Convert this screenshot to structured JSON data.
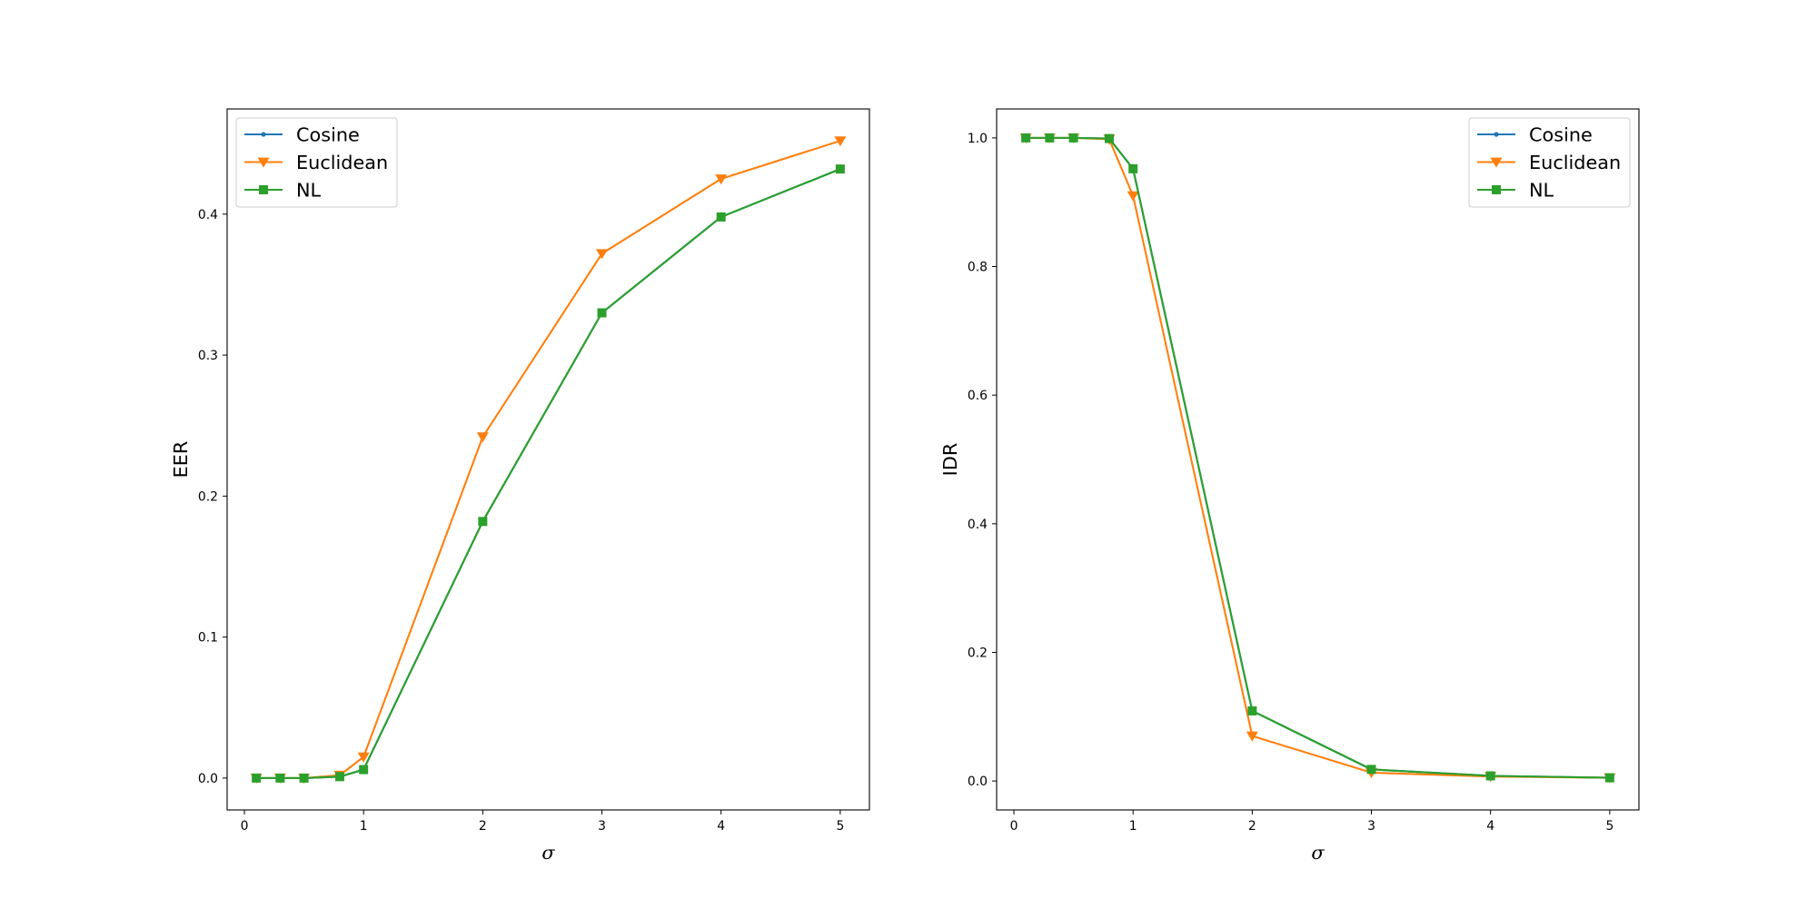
{
  "chart_data": [
    {
      "type": "line",
      "xlabel": "σ",
      "ylabel": "EER",
      "xlim": [
        -0.145,
        5.245
      ],
      "ylim": [
        -0.0226,
        0.4746
      ],
      "xticks": [
        0,
        1,
        2,
        3,
        4,
        5
      ],
      "yticks": [
        0.0,
        0.1,
        0.2,
        0.3,
        0.4
      ],
      "ytick_labels": [
        "0.0",
        "0.1",
        "0.2",
        "0.3",
        "0.4"
      ],
      "legend_position": "upper left",
      "grid": false,
      "x": [
        0.1,
        0.3,
        0.5,
        0.8,
        1,
        2,
        3,
        4,
        5
      ],
      "series": [
        {
          "name": "Cosine",
          "color": "#1f77b4",
          "marker": "point",
          "values": [
            0.0,
            0.0,
            0.0,
            0.001,
            0.006,
            0.182,
            0.33,
            0.398,
            0.432
          ]
        },
        {
          "name": "Euclidean",
          "color": "#ff7f0e",
          "marker": "triangle-down",
          "values": [
            0.0,
            0.0,
            0.0,
            0.002,
            0.015,
            0.242,
            0.372,
            0.425,
            0.452
          ]
        },
        {
          "name": "NL",
          "color": "#2ca02c",
          "marker": "square",
          "values": [
            0.0,
            0.0,
            0.0,
            0.001,
            0.006,
            0.182,
            0.33,
            0.398,
            0.432
          ]
        }
      ]
    },
    {
      "type": "line",
      "xlabel": "σ",
      "ylabel": "IDR",
      "xlim": [
        -0.145,
        5.245
      ],
      "ylim": [
        -0.045,
        1.045
      ],
      "xticks": [
        0,
        1,
        2,
        3,
        4,
        5
      ],
      "yticks": [
        0.0,
        0.2,
        0.4,
        0.6,
        0.8,
        1.0
      ],
      "ytick_labels": [
        "0.0",
        "0.2",
        "0.4",
        "0.6",
        "0.8",
        "1.0"
      ],
      "legend_position": "upper right",
      "grid": false,
      "x": [
        0.1,
        0.3,
        0.5,
        0.8,
        1,
        2,
        3,
        4,
        5
      ],
      "series": [
        {
          "name": "Cosine",
          "color": "#1f77b4",
          "marker": "point",
          "values": [
            1.0,
            1.0,
            1.0,
            0.999,
            0.952,
            0.109,
            0.018,
            0.008,
            0.005
          ]
        },
        {
          "name": "Euclidean",
          "color": "#ff7f0e",
          "marker": "triangle-down",
          "values": [
            1.0,
            1.0,
            1.0,
            0.998,
            0.91,
            0.07,
            0.013,
            0.007,
            0.005
          ]
        },
        {
          "name": "NL",
          "color": "#2ca02c",
          "marker": "square",
          "values": [
            1.0,
            1.0,
            1.0,
            0.999,
            0.952,
            0.109,
            0.018,
            0.008,
            0.005
          ]
        }
      ]
    }
  ]
}
